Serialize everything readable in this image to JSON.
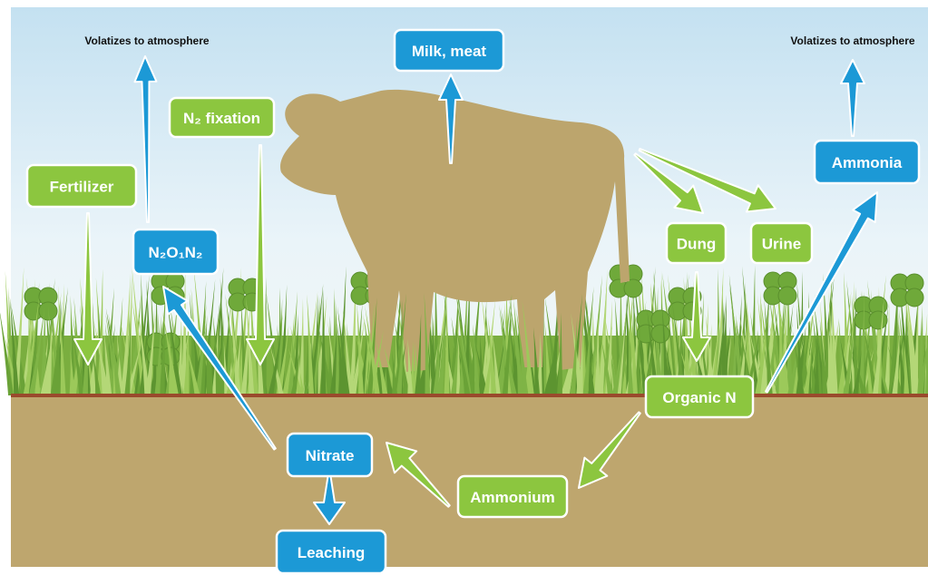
{
  "annotations": [
    "Volatizes to atmosphere",
    "Volatizes to atmosphere"
  ],
  "nodes": [
    {
      "label": "Milk, meat"
    },
    {
      "label": "N₂ fixation"
    },
    {
      "label": "Fertilizer"
    },
    {
      "label": "N₂O₁N₂"
    },
    {
      "label": "Dung"
    },
    {
      "label": "Urine"
    },
    {
      "label": "Ammonia"
    },
    {
      "label": "Organic N"
    },
    {
      "label": "Ammonium"
    },
    {
      "label": "Nitrate"
    },
    {
      "label": "Leaching"
    }
  ]
}
